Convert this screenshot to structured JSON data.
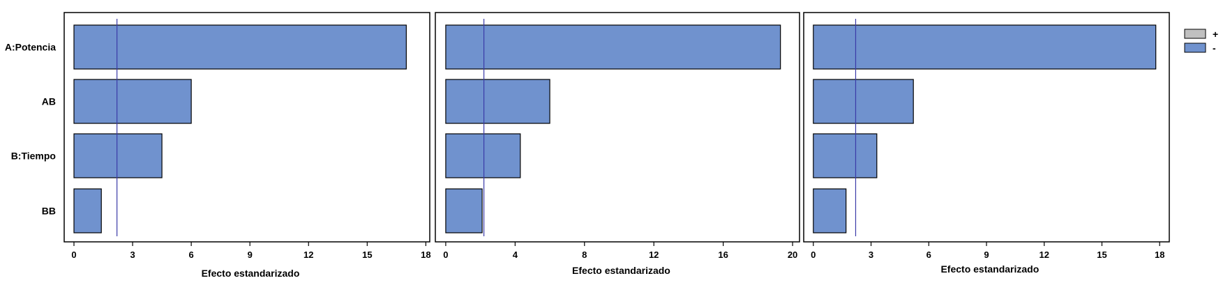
{
  "chart_data": [
    {
      "type": "bar",
      "orientation": "horizontal",
      "categories": [
        "A:Potencia",
        "AB",
        "B:Tiempo",
        "BB"
      ],
      "values": [
        17.0,
        6.0,
        4.5,
        1.4
      ],
      "xlabel": "Efecto estandarizado",
      "xlim": [
        -0.5,
        18.2
      ],
      "xticks": [
        0,
        3,
        6,
        9,
        12,
        15,
        18
      ],
      "reference_line": 2.2,
      "show_category_labels": true
    },
    {
      "type": "bar",
      "orientation": "horizontal",
      "categories": [
        "A:Potencia",
        "AB",
        "B:Tiempo",
        "BB"
      ],
      "values": [
        19.3,
        6.0,
        4.3,
        2.1
      ],
      "xlabel": "Efecto estandarizado",
      "xlim": [
        -0.6,
        20.4
      ],
      "xticks": [
        0,
        4,
        8,
        12,
        16,
        20
      ],
      "reference_line": 2.2,
      "show_category_labels": false
    },
    {
      "type": "bar",
      "orientation": "horizontal",
      "categories": [
        "A:Potencia",
        "AB",
        "B:Tiempo",
        "BB"
      ],
      "values": [
        17.8,
        5.2,
        3.3,
        1.7
      ],
      "xlabel": "Efecto estandarizado",
      "xlim": [
        -0.5,
        18.5
      ],
      "xticks": [
        0,
        3,
        6,
        9,
        12,
        15,
        18
      ],
      "reference_line": 2.2,
      "show_category_labels": false
    }
  ],
  "legend": {
    "position": "right",
    "items": [
      {
        "label": "+",
        "color": "#c0c0c0"
      },
      {
        "label": "-",
        "color": "#7092ce"
      }
    ]
  },
  "colors": {
    "bar_fill": "#7092ce",
    "bar_stroke": "#000000",
    "reference_line": "#3a3aa8",
    "frame": "#000000"
  }
}
